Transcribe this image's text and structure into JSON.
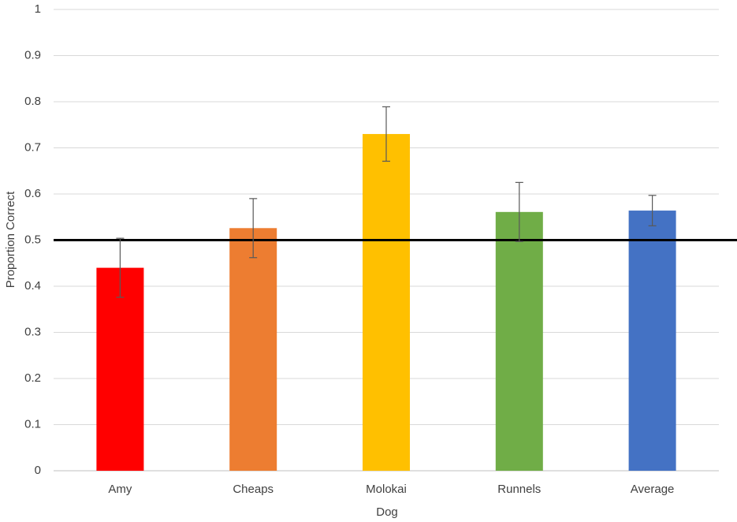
{
  "chart_data": {
    "type": "bar",
    "x_label": "Dog",
    "y_label": "Proportion Correct",
    "categories": [
      "Amy",
      "Cheaps",
      "Molokai",
      "Runnels",
      "Average"
    ],
    "values": [
      0.44,
      0.526,
      0.73,
      0.561,
      0.564
    ],
    "errors": [
      0.064,
      0.064,
      0.059,
      0.064,
      0.033
    ],
    "colors": [
      "#ff0000",
      "#ed7d31",
      "#ffc000",
      "#70ad47",
      "#4472c4"
    ],
    "reference_line": 0.5,
    "ylim": [
      0,
      1
    ],
    "yticks": [
      0,
      0.1,
      0.2,
      0.3,
      0.4,
      0.5,
      0.6,
      0.7,
      0.8,
      0.9,
      1
    ],
    "grid": true
  }
}
